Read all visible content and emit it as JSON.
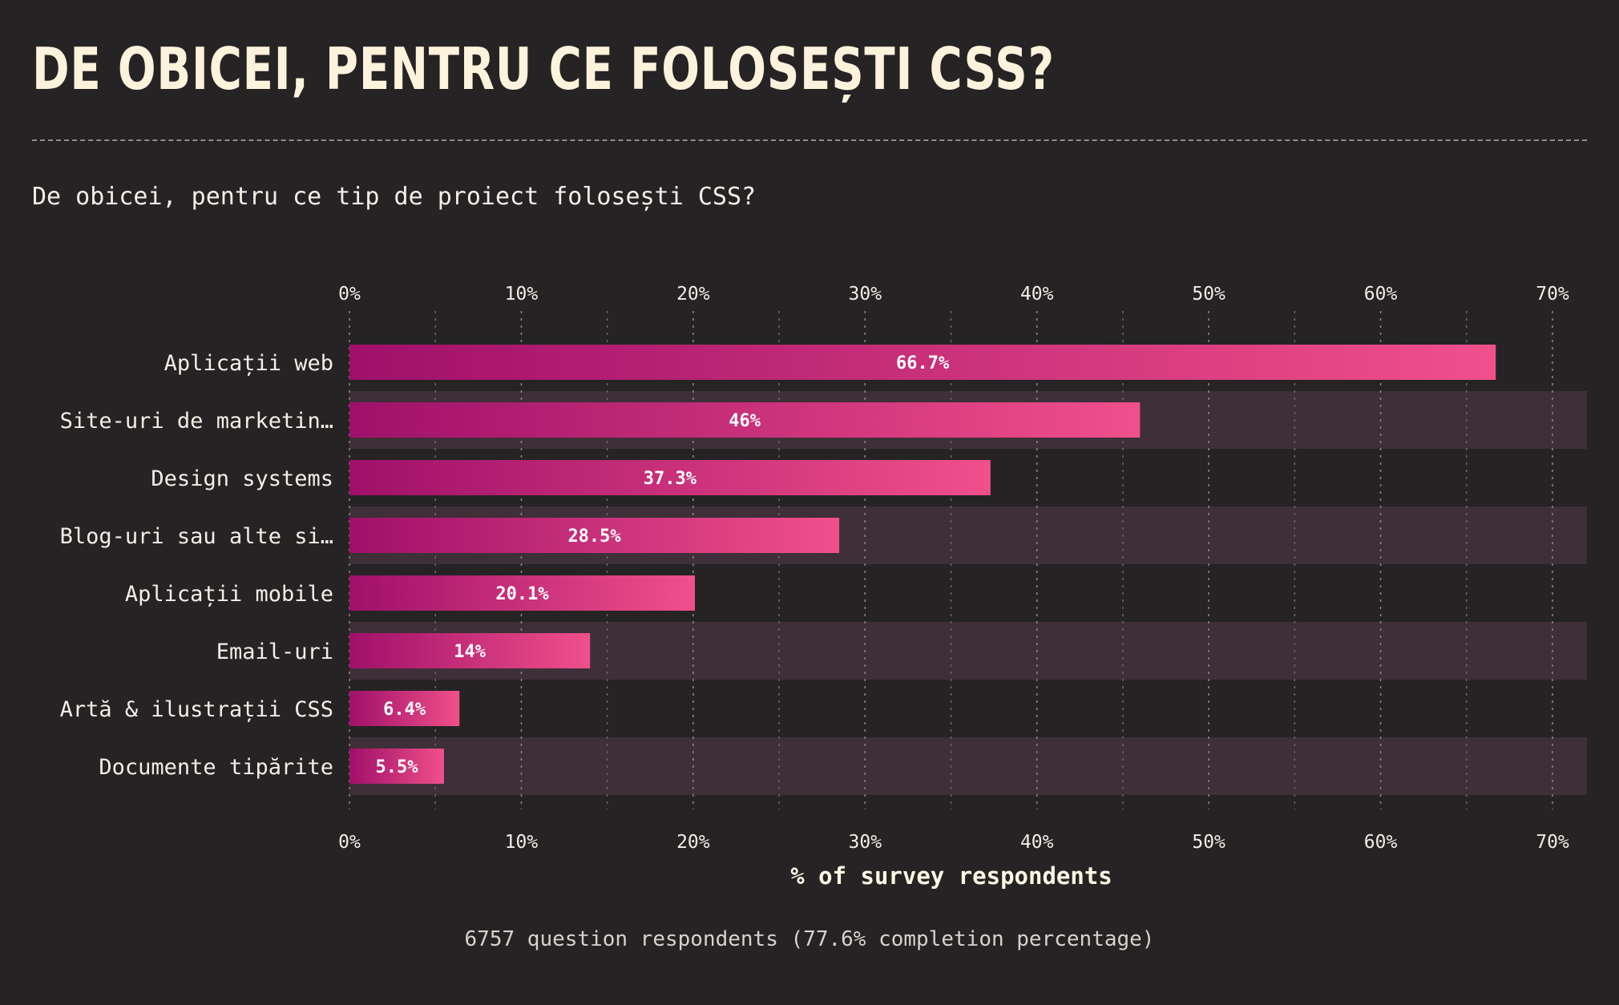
{
  "title": "DE OBICEI, PENTRU CE FOLOSEȘTI CSS?",
  "subtitle": "De obicei, pentru ce tip de proiect folosești CSS?",
  "footer": "6757 question respondents (77.6% completion percentage)",
  "colors": {
    "background": "#262324",
    "bar_start": "#a0106a",
    "bar_end": "#f0508a",
    "band": "#3e2f38",
    "text": "#fdf6e3"
  },
  "chart_data": {
    "type": "bar",
    "orientation": "horizontal",
    "categories": [
      "Aplicații web",
      "Site-uri de marketin…",
      "Design systems",
      "Blog-uri sau alte si…",
      "Aplicații mobile",
      "Email-uri",
      "Artă & ilustrații CSS",
      "Documente tipărite"
    ],
    "values": [
      66.7,
      46,
      37.3,
      28.5,
      20.1,
      14,
      6.4,
      5.5
    ],
    "value_labels": [
      "66.7%",
      "46%",
      "37.3%",
      "28.5%",
      "20.1%",
      "14%",
      "6.4%",
      "5.5%"
    ],
    "xlabel": "% of survey respondents",
    "xlim": [
      0,
      72
    ],
    "ticks": [
      0,
      10,
      20,
      30,
      40,
      50,
      60,
      70
    ],
    "tick_labels": [
      "0%",
      "10%",
      "20%",
      "30%",
      "40%",
      "50%",
      "60%",
      "70%"
    ],
    "grid": true,
    "grid_minor": true,
    "tick_labels_top": true,
    "tick_labels_bottom": true
  }
}
